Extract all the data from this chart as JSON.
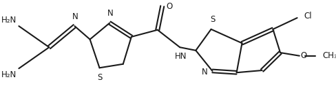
{
  "bg_color": "#ffffff",
  "line_color": "#1a1a1a",
  "line_width": 1.5,
  "font_size": 8.5,
  "figsize": [
    4.88,
    1.42
  ],
  "dpi": 100,
  "xlim": [
    0,
    10.2
  ],
  "ylim": [
    0,
    3.0
  ]
}
